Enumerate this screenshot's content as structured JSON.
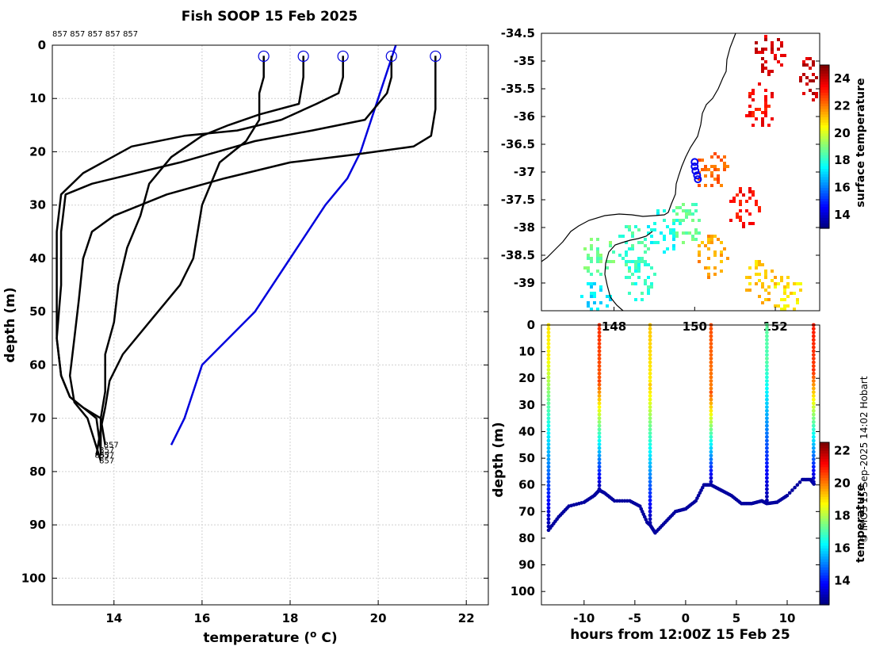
{
  "credit": "© IMOS 15-Sep-2025 14:02 Hobart",
  "profile_panel": {
    "title": "Fish SOOP 15 Feb 2025",
    "drop_labels_top": "857 857 857 857 857",
    "bottom_labels": [
      "857",
      "857",
      "857",
      "857",
      "857"
    ]
  },
  "map_panel": {
    "colorbar_label": "surface temperature",
    "colorbar_range": [
      13,
      25
    ],
    "colorbar_ticks": [
      "14",
      "16",
      "18",
      "20",
      "22",
      "24"
    ],
    "lat_ticks": [
      "-34.5",
      "-35",
      "-35.5",
      "-36",
      "-36.5",
      "-37",
      "-37.5",
      "-38",
      "-38.5",
      "-39"
    ],
    "lon_ticks": [
      "148",
      "150",
      "152"
    ]
  },
  "time_panel": {
    "colorbar_label": "temperature",
    "colorbar_range": [
      12.5,
      22.5
    ],
    "colorbar_ticks": [
      "14",
      "16",
      "18",
      "20",
      "22"
    ]
  },
  "chart_data": [
    {
      "type": "line",
      "name": "temperature-depth-profiles",
      "title": "Fish SOOP 15 Feb 2025",
      "xlabel": "temperature (° C)",
      "ylabel": "depth (m)",
      "xlim": [
        12.6,
        22.5
      ],
      "ylim": [
        105,
        0
      ],
      "xticks": [
        14,
        16,
        18,
        20,
        22
      ],
      "yticks": [
        0,
        10,
        20,
        30,
        40,
        50,
        60,
        70,
        80,
        90,
        100
      ],
      "grid": true,
      "series": [
        {
          "name": "climatology",
          "color": "#0000dd",
          "points": [
            [
              20.4,
              0
            ],
            [
              20.2,
              5
            ],
            [
              20.0,
              10
            ],
            [
              19.8,
              15
            ],
            [
              19.6,
              20
            ],
            [
              19.3,
              25
            ],
            [
              18.8,
              30
            ],
            [
              18.0,
              40
            ],
            [
              17.2,
              50
            ],
            [
              16.0,
              60
            ],
            [
              15.6,
              70
            ],
            [
              15.3,
              75
            ]
          ]
        },
        {
          "name": "profile-1",
          "color": "#000000",
          "points": [
            [
              20.3,
              2
            ],
            [
              20.3,
              6
            ],
            [
              20.2,
              9
            ],
            [
              19.7,
              14
            ],
            [
              18.5,
              16
            ],
            [
              17.2,
              18
            ],
            [
              15.5,
              22
            ],
            [
              13.5,
              26
            ],
            [
              12.9,
              28
            ],
            [
              12.8,
              35
            ],
            [
              12.8,
              45
            ],
            [
              12.7,
              55
            ],
            [
              12.8,
              62
            ],
            [
              13.0,
              66
            ],
            [
              13.3,
              68
            ],
            [
              13.6,
              70
            ],
            [
              13.7,
              76
            ]
          ]
        },
        {
          "name": "profile-2",
          "color": "#000000",
          "points": [
            [
              21.3,
              2
            ],
            [
              21.3,
              8
            ],
            [
              21.3,
              12
            ],
            [
              21.2,
              17
            ],
            [
              20.8,
              19
            ],
            [
              19.5,
              20.5
            ],
            [
              18.0,
              22
            ],
            [
              16.5,
              25
            ],
            [
              15.2,
              28
            ],
            [
              14.0,
              32
            ],
            [
              13.5,
              35
            ],
            [
              13.3,
              40
            ],
            [
              13.2,
              48
            ],
            [
              13.1,
              55
            ],
            [
              13.0,
              62
            ],
            [
              13.1,
              67
            ],
            [
              13.4,
              70
            ],
            [
              13.7,
              78
            ]
          ]
        },
        {
          "name": "profile-3",
          "color": "#000000",
          "points": [
            [
              19.2,
              2
            ],
            [
              19.2,
              6
            ],
            [
              19.1,
              9
            ],
            [
              18.6,
              11
            ],
            [
              17.8,
              14
            ],
            [
              16.8,
              16
            ],
            [
              15.6,
              17
            ],
            [
              14.4,
              19
            ],
            [
              13.3,
              24
            ],
            [
              12.8,
              28
            ],
            [
              12.7,
              35
            ],
            [
              12.7,
              45
            ],
            [
              12.7,
              55
            ],
            [
              12.8,
              62
            ],
            [
              13.0,
              66
            ],
            [
              13.3,
              68
            ],
            [
              13.7,
              70
            ],
            [
              13.8,
              75
            ]
          ]
        },
        {
          "name": "profile-4",
          "color": "#000000",
          "points": [
            [
              18.3,
              2
            ],
            [
              18.3,
              6
            ],
            [
              18.2,
              11
            ],
            [
              17.3,
              13
            ],
            [
              16.6,
              15
            ],
            [
              16.0,
              17
            ],
            [
              15.3,
              21
            ],
            [
              14.8,
              26
            ],
            [
              14.6,
              32
            ],
            [
              14.3,
              38
            ],
            [
              14.1,
              45
            ],
            [
              14.0,
              52
            ],
            [
              13.8,
              58
            ],
            [
              13.8,
              65
            ],
            [
              13.7,
              70
            ],
            [
              13.7,
              77
            ]
          ]
        },
        {
          "name": "profile-5",
          "color": "#000000",
          "points": [
            [
              17.4,
              2
            ],
            [
              17.4,
              6
            ],
            [
              17.3,
              9
            ],
            [
              17.3,
              14
            ],
            [
              17.0,
              18
            ],
            [
              16.4,
              22
            ],
            [
              16.0,
              30
            ],
            [
              15.8,
              40
            ],
            [
              15.5,
              45
            ],
            [
              14.8,
              52
            ],
            [
              14.2,
              58
            ],
            [
              13.9,
              63
            ],
            [
              13.8,
              68
            ],
            [
              13.7,
              72
            ],
            [
              13.6,
              77
            ]
          ]
        }
      ]
    },
    {
      "type": "heatmap",
      "name": "sea-surface-temperature-map",
      "colorbar_label": "surface temperature",
      "colorbar_range": [
        13,
        25
      ],
      "lat_range": [
        -39.5,
        -34.5
      ],
      "lon_range": [
        146.2,
        153.1
      ],
      "patches": [
        {
          "lon": 151.8,
          "lat": -34.85,
          "temp": 24.0
        },
        {
          "lon": 152.9,
          "lat": -35.3,
          "temp": 24.2
        },
        {
          "lon": 151.6,
          "lat": -35.8,
          "temp": 23.4
        },
        {
          "lon": 150.4,
          "lat": -37.0,
          "temp": 22.4
        },
        {
          "lon": 151.2,
          "lat": -37.6,
          "temp": 23.4
        },
        {
          "lon": 150.4,
          "lat": -38.5,
          "temp": 21.6
        },
        {
          "lon": 151.6,
          "lat": -38.95,
          "temp": 21.2
        },
        {
          "lon": 152.3,
          "lat": -39.2,
          "temp": 20.8
        },
        {
          "lon": 147.6,
          "lat": -38.5,
          "temp": 18.8
        },
        {
          "lon": 148.6,
          "lat": -38.9,
          "temp": 18.0
        },
        {
          "lon": 149.2,
          "lat": -38.05,
          "temp": 17.6
        },
        {
          "lon": 149.8,
          "lat": -37.85,
          "temp": 18.6
        },
        {
          "lon": 148.4,
          "lat": -38.35,
          "temp": 18.3
        },
        {
          "lon": 147.5,
          "lat": -39.3,
          "temp": 17.2
        }
      ],
      "track_points": [
        [
          150.0,
          -36.82
        ],
        [
          150.0,
          -36.9
        ],
        [
          150.02,
          -36.98
        ],
        [
          150.06,
          -37.06
        ],
        [
          150.08,
          -37.13
        ]
      ]
    },
    {
      "type": "scatter",
      "name": "depth-time-section",
      "xlabel": "hours from 12:00Z 15 Feb 25",
      "ylabel": "depth (m)",
      "xlim": [
        -14.2,
        13.2
      ],
      "ylim": [
        105,
        0
      ],
      "xticks": [
        -10,
        -5,
        0,
        5,
        10
      ],
      "yticks": [
        0,
        10,
        20,
        30,
        40,
        50,
        60,
        70,
        80,
        90,
        100
      ],
      "colorbar_label": "temperature",
      "casts": [
        {
          "hour": -13.5,
          "max_depth": 77,
          "surface_temp": 19.0,
          "thermocline_depth": 10
        },
        {
          "hour": -8.5,
          "max_depth": 62,
          "surface_temp": 20.8,
          "thermocline_depth": 20
        },
        {
          "hour": -3.5,
          "max_depth": 75,
          "surface_temp": 19.3,
          "thermocline_depth": 22
        },
        {
          "hour": 2.5,
          "max_depth": 60,
          "surface_temp": 20.5,
          "thermocline_depth": 25
        },
        {
          "hour": 8.0,
          "max_depth": 67,
          "surface_temp": 17.2,
          "thermocline_depth": 12
        },
        {
          "hour": 12.6,
          "max_depth": 60,
          "surface_temp": 21.0,
          "thermocline_depth": 16
        }
      ],
      "bottom_track": [
        [
          -13.5,
          77
        ],
        [
          -12.5,
          72
        ],
        [
          -11.5,
          68
        ],
        [
          -10,
          66.5
        ],
        [
          -9,
          64
        ],
        [
          -8.5,
          62
        ],
        [
          -8,
          63
        ],
        [
          -7,
          66
        ],
        [
          -5.5,
          66
        ],
        [
          -4.5,
          68
        ],
        [
          -3.8,
          74
        ],
        [
          -3.5,
          75
        ],
        [
          -3,
          78
        ],
        [
          -2,
          74
        ],
        [
          -1,
          70
        ],
        [
          0,
          69
        ],
        [
          1,
          66
        ],
        [
          1.8,
          60
        ],
        [
          2.5,
          60
        ],
        [
          3.5,
          62
        ],
        [
          4.5,
          64
        ],
        [
          5.5,
          67
        ],
        [
          6.5,
          67
        ],
        [
          7.5,
          66
        ],
        [
          8,
          67
        ],
        [
          9,
          66.5
        ],
        [
          10,
          64
        ],
        [
          11.5,
          58
        ],
        [
          12.3,
          58
        ],
        [
          12.7,
          60
        ]
      ]
    }
  ]
}
